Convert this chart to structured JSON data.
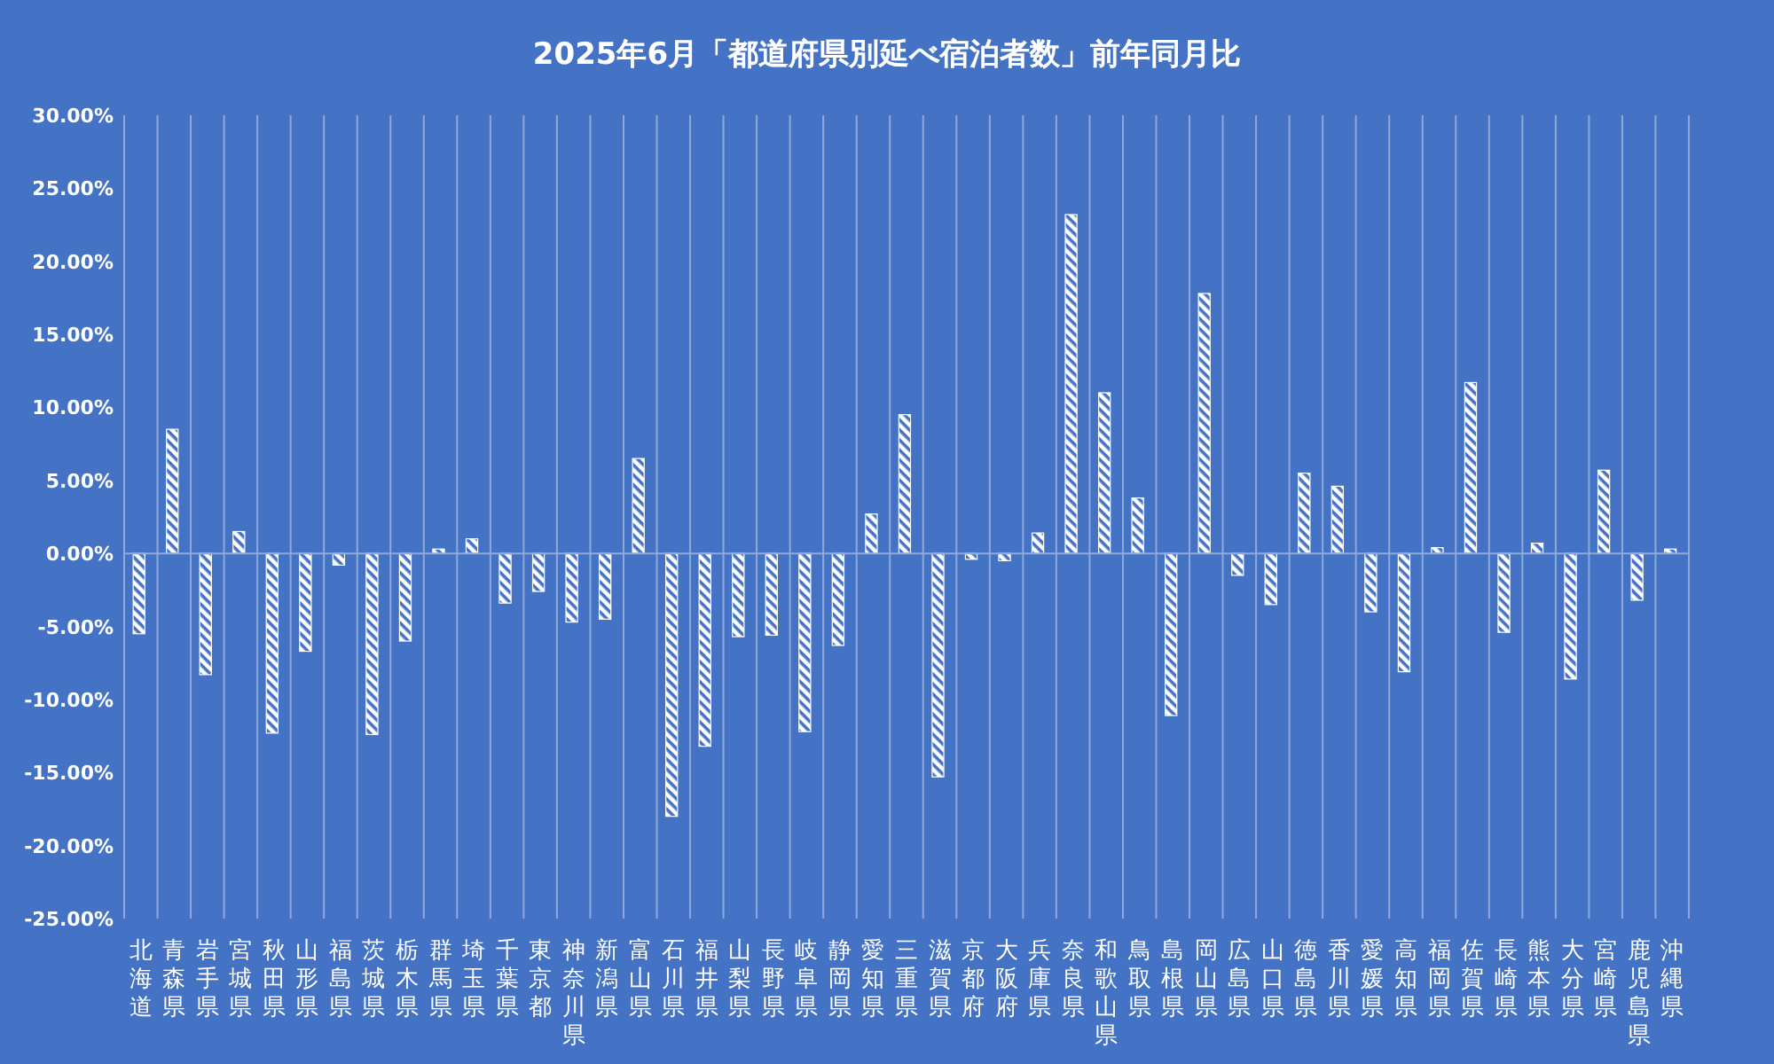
{
  "chart_data": {
    "type": "bar",
    "title": "2025年6月「都道府県別延べ宿泊者数」前年同月比",
    "categories": [
      "北海道",
      "青森県",
      "岩手県",
      "宮城県",
      "秋田県",
      "山形県",
      "福島県",
      "茨城県",
      "栃木県",
      "群馬県",
      "埼玉県",
      "千葉県",
      "東京都",
      "神奈川県",
      "新潟県",
      "富山県",
      "石川県",
      "福井県",
      "山梨県",
      "長野県",
      "岐阜県",
      "静岡県",
      "愛知県",
      "三重県",
      "滋賀県",
      "京都府",
      "大阪府",
      "兵庫県",
      "奈良県",
      "和歌山県",
      "鳥取県",
      "島根県",
      "岡山県",
      "広島県",
      "山口県",
      "徳島県",
      "香川県",
      "愛媛県",
      "高知県",
      "福岡県",
      "佐賀県",
      "長崎県",
      "熊本県",
      "大分県",
      "宮崎県",
      "鹿児島県",
      "沖縄県"
    ],
    "values": [
      -5.5,
      8.5,
      -8.3,
      1.5,
      -12.3,
      -6.7,
      -0.8,
      -12.4,
      -6.0,
      0.3,
      1.0,
      -3.4,
      -2.6,
      -4.7,
      -4.5,
      6.5,
      -18.0,
      -13.2,
      -5.7,
      -5.6,
      -12.2,
      -6.3,
      2.7,
      9.5,
      -15.3,
      -0.4,
      -0.5,
      1.4,
      23.2,
      11.0,
      3.8,
      -11.1,
      17.8,
      -1.5,
      -3.5,
      5.5,
      4.6,
      -4.0,
      -8.1,
      0.4,
      11.7,
      -5.4,
      0.7,
      -8.6,
      5.7,
      -3.2,
      0.3
    ],
    "color": "#ffffff",
    "ylim": [
      -25,
      30
    ],
    "yticks": [
      {
        "value": 30,
        "label": "30.00%"
      },
      {
        "value": 25,
        "label": "25.00%"
      },
      {
        "value": 20,
        "label": "20.00%"
      },
      {
        "value": 15,
        "label": "15.00%"
      },
      {
        "value": 10,
        "label": "10.00%"
      },
      {
        "value": 5,
        "label": "5.00%"
      },
      {
        "value": 0,
        "label": "0.00%"
      },
      {
        "value": -5,
        "label": "-5.00%"
      },
      {
        "value": -10,
        "label": "-10.00%"
      },
      {
        "value": -15,
        "label": "-15.00%"
      },
      {
        "value": -20,
        "label": "-20.00%"
      },
      {
        "value": -25,
        "label": "-25.00%"
      }
    ],
    "grid": "x",
    "ref_lines": [
      {
        "axis": "y",
        "value": 0,
        "color": "#8eaadb"
      }
    ]
  }
}
